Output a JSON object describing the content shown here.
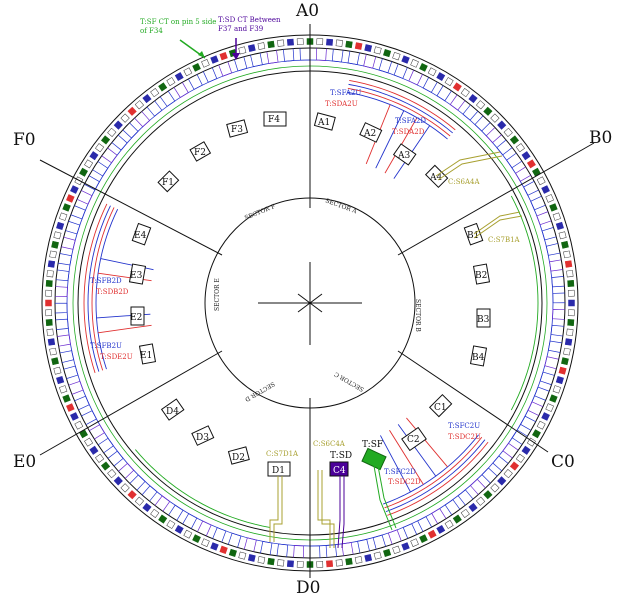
{
  "axes": {
    "A": "A0",
    "B": "B0",
    "C": "C0",
    "D": "D0",
    "E": "E0",
    "F": "F0"
  },
  "sectors": {
    "a": "SECTOR A",
    "b": "SECTOR B",
    "c": "SECTOR C",
    "d": "SECTOR D",
    "e": "SECTOR E",
    "f": "SECTOR F"
  },
  "notes": {
    "green_note": "T:SF CT on pin 5 side of F34",
    "purple_note": "T:SD CT Between F37 and F39"
  },
  "cable_labels": {
    "tsfa2u": "T:SFA2U",
    "tsda2u": "T:SDA2U",
    "tsfa2d": "T:SFA2D",
    "tsda2d": "T:SDA2D",
    "cs6a4a": "C:S6A4A",
    "cs7b1a": "C:S7B1A",
    "tsfb2d": "T:SFB2D",
    "tsdb2d": "T:SDB2D",
    "tsfb2u": "T:SFB2U",
    "tsde2u": "T:SDE2U",
    "tsfc2u": "T:SFC2U",
    "tsdc2u": "T:SDC2U",
    "tsfc2d": "T:SFC2D",
    "tsdc2d": "T:SDC2D",
    "cs7d1a": "C:S7D1A",
    "cs6c4a": "C:S6C4A",
    "tsd": "T:SD",
    "tsf": "T:SF"
  },
  "boxes": {
    "e_f4": "F4",
    "e_f3": "F3",
    "e_f2": "F2",
    "e_f1": "F1",
    "e_a1": "A1",
    "e_a2": "A2",
    "e_a3": "A3",
    "e_a4": "A4",
    "e_b1": "B1",
    "e_b2": "B2",
    "e_b3": "B3",
    "e_b4": "B4",
    "e_c1": "C1",
    "e_c2": "C2",
    "e_c4": "C4",
    "e_d1": "D1",
    "e_d2": "D2",
    "e_d3": "D3",
    "e_d4": "D4",
    "e_e1": "E1",
    "e_e2": "E2",
    "e_e3": "E3",
    "e_e4": "E4"
  },
  "colors": {
    "green": "#22aa22",
    "purple": "#4b0099",
    "blue": "#2233cc",
    "red": "#e03030",
    "olive": "#a8a030",
    "dark_green": "#116611"
  }
}
